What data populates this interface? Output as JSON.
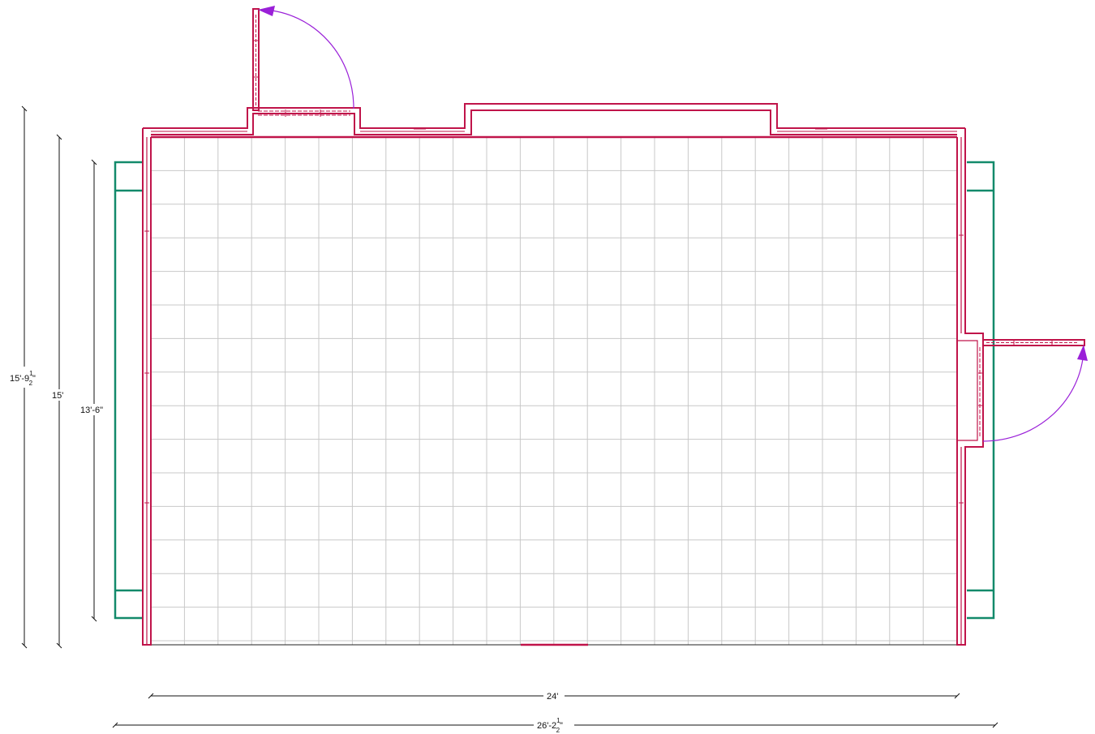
{
  "colors": {
    "wall": "#c0144a",
    "window": "#138a6b",
    "door_swing": "#9a20d8",
    "grid": "#c8c8c8",
    "dimension": "#111111"
  },
  "dimensions": {
    "left_outer": {
      "whole": "15'-9",
      "num": "1",
      "den": "2",
      "suffix": "\""
    },
    "left_mid": {
      "text": "15'"
    },
    "left_inner": {
      "text": "13'-6\""
    },
    "bottom_inner": {
      "text": "24'"
    },
    "bottom_outer": {
      "whole": "26'-2",
      "num": "1",
      "den": "2",
      "suffix": "\""
    }
  }
}
